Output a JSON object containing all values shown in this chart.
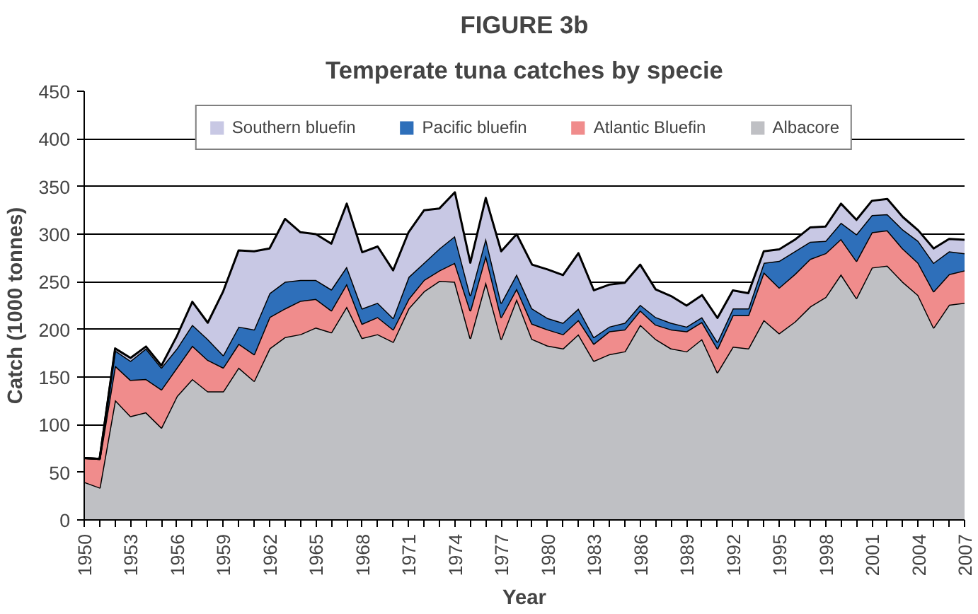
{
  "chart_data": {
    "type": "area",
    "stacked": true,
    "title": "FIGURE 3b",
    "subtitle": "Temperate tuna catches by specie",
    "xlabel": "Year",
    "ylabel": "Catch (1000 tonnes)",
    "x": [
      1950,
      1951,
      1952,
      1953,
      1954,
      1955,
      1956,
      1957,
      1958,
      1959,
      1960,
      1961,
      1962,
      1963,
      1964,
      1965,
      1966,
      1967,
      1968,
      1969,
      1970,
      1971,
      1972,
      1973,
      1974,
      1975,
      1976,
      1977,
      1978,
      1979,
      1980,
      1981,
      1982,
      1983,
      1984,
      1985,
      1986,
      1987,
      1988,
      1989,
      1990,
      1991,
      1992,
      1993,
      1994,
      1995,
      1996,
      1997,
      1998,
      1999,
      2000,
      2001,
      2002,
      2003,
      2004,
      2005,
      2006,
      2007
    ],
    "series": [
      {
        "name": "Albacore",
        "color": "#bfc0c4",
        "values": [
          40,
          34,
          126,
          109,
          113,
          97,
          130,
          148,
          135,
          135,
          160,
          146,
          180,
          192,
          195,
          202,
          197,
          224,
          191,
          195,
          187,
          222,
          240,
          251,
          250,
          191,
          250,
          190,
          232,
          190,
          183,
          180,
          195,
          167,
          174,
          177,
          205,
          190,
          180,
          177,
          190,
          155,
          182,
          180,
          210,
          196,
          208,
          224,
          234,
          258,
          233,
          265,
          267,
          250,
          236,
          202,
          226,
          228
        ]
      },
      {
        "name": "Atlantic Bluefin",
        "color": "#f08c8c",
        "values": [
          25,
          30,
          36,
          38,
          35,
          40,
          30,
          35,
          33,
          25,
          25,
          28,
          33,
          30,
          35,
          30,
          23,
          24,
          15,
          18,
          13,
          10,
          12,
          11,
          20,
          29,
          28,
          23,
          11,
          16,
          17,
          15,
          15,
          18,
          24,
          23,
          15,
          15,
          20,
          21,
          18,
          25,
          33,
          35,
          50,
          48,
          50,
          50,
          46,
          37,
          39,
          37,
          37,
          35,
          34,
          38,
          32,
          34
        ]
      },
      {
        "name": "Pacific bluefin",
        "color": "#2e6fba",
        "values": [
          0,
          0,
          16,
          20,
          32,
          23,
          20,
          22,
          22,
          13,
          18,
          26,
          25,
          28,
          22,
          20,
          22,
          18,
          16,
          15,
          12,
          23,
          18,
          23,
          28,
          16,
          18,
          15,
          15,
          16,
          12,
          12,
          12,
          7,
          5,
          7,
          6,
          8,
          7,
          5,
          5,
          7,
          7,
          7,
          10,
          28,
          24,
          18,
          13,
          17,
          28,
          18,
          17,
          20,
          23,
          30,
          24,
          18
        ]
      },
      {
        "name": "Southern bluefin",
        "color": "#c8c8e4",
        "values": [
          0,
          0,
          2,
          3,
          2,
          2,
          13,
          24,
          17,
          67,
          80,
          82,
          47,
          66,
          50,
          48,
          48,
          66,
          59,
          59,
          50,
          47,
          55,
          42,
          46,
          34,
          42,
          54,
          42,
          46,
          51,
          50,
          58,
          49,
          44,
          42,
          42,
          29,
          28,
          22,
          23,
          25,
          19,
          16,
          12,
          12,
          12,
          15,
          15,
          20,
          15,
          15,
          16,
          13,
          11,
          15,
          13,
          14
        ]
      }
    ],
    "xlim": [
      1950,
      2007
    ],
    "xticks": [
      1950,
      {
        "value": 1951,
        "label": null
      },
      {
        "value": 1952,
        "label": null
      },
      1953,
      {
        "value": 1954,
        "label": null
      },
      {
        "value": 1955,
        "label": null
      },
      1956,
      {
        "value": 1957,
        "label": null
      },
      {
        "value": 1958,
        "label": null
      },
      1959,
      {
        "value": 1960,
        "label": null
      },
      {
        "value": 1961,
        "label": null
      },
      1962,
      {
        "value": 1963,
        "label": null
      },
      {
        "value": 1964,
        "label": null
      },
      1965,
      {
        "value": 1966,
        "label": null
      },
      {
        "value": 1967,
        "label": null
      },
      1968,
      {
        "value": 1969,
        "label": null
      },
      {
        "value": 1970,
        "label": null
      },
      1971,
      {
        "value": 1972,
        "label": null
      },
      {
        "value": 1973,
        "label": null
      },
      1974,
      {
        "value": 1975,
        "label": null
      },
      {
        "value": 1976,
        "label": null
      },
      1977,
      {
        "value": 1978,
        "label": null
      },
      {
        "value": 1979,
        "label": null
      },
      1980,
      {
        "value": 1981,
        "label": null
      },
      {
        "value": 1982,
        "label": null
      },
      1983,
      {
        "value": 1984,
        "label": null
      },
      {
        "value": 1985,
        "label": null
      },
      1986,
      {
        "value": 1987,
        "label": null
      },
      {
        "value": 1988,
        "label": null
      },
      1989,
      {
        "value": 1990,
        "label": null
      },
      {
        "value": 1991,
        "label": null
      },
      1992,
      {
        "value": 1993,
        "label": null
      },
      {
        "value": 1994,
        "label": null
      },
      1995,
      {
        "value": 1996,
        "label": null
      },
      {
        "value": 1997,
        "label": null
      },
      1998,
      {
        "value": 1999,
        "label": null
      },
      {
        "value": 2000,
        "label": null
      },
      2001,
      {
        "value": 2002,
        "label": null
      },
      {
        "value": 2003,
        "label": null
      },
      2004,
      {
        "value": 2005,
        "label": null
      },
      {
        "value": 2006,
        "label": null
      },
      2007
    ],
    "ylim": [
      0,
      450
    ],
    "yticks": [
      0,
      50,
      100,
      150,
      200,
      250,
      300,
      350,
      400,
      450
    ],
    "grid": "y",
    "legend": "top"
  }
}
